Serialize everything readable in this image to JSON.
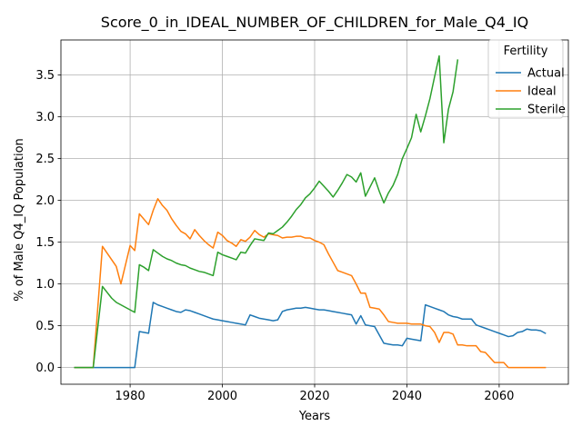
{
  "chart_data": {
    "type": "line",
    "title": "Score_0_in_IDEAL_NUMBER_OF_CHILDREN_for_Male_Q4_IQ",
    "xlabel": "Years",
    "ylabel": "% of Male Q4_IQ Population",
    "xlim": [
      1965,
      2075
    ],
    "ylim": [
      -0.2,
      3.92
    ],
    "xticks": [
      1980,
      2000,
      2020,
      2040,
      2060
    ],
    "yticks": [
      0.0,
      0.5,
      1.0,
      1.5,
      2.0,
      2.5,
      3.0,
      3.5
    ],
    "ytick_labels": [
      "0.0",
      "0.5",
      "1.0",
      "1.5",
      "2.0",
      "2.5",
      "3.0",
      "3.5"
    ],
    "grid": true,
    "legend": {
      "title": "Fertility",
      "position": "upper right"
    },
    "series": [
      {
        "name": "Actual",
        "color": "#1f77b4",
        "x": [
          1968,
          1972,
          1981,
          1982,
          1984,
          1985,
          1986,
          1987,
          1988,
          1989,
          1990,
          1991,
          1992,
          1993,
          1994,
          1995,
          1996,
          1997,
          1998,
          1999,
          2000,
          2001,
          2002,
          2003,
          2004,
          2005,
          2006,
          2007,
          2008,
          2009,
          2010,
          2011,
          2012,
          2013,
          2014,
          2015,
          2016,
          2017,
          2018,
          2019,
          2020,
          2021,
          2022,
          2023,
          2024,
          2025,
          2026,
          2027,
          2028,
          2029,
          2030,
          2031,
          2032,
          2033,
          2035,
          2036,
          2037,
          2038,
          2039,
          2040,
          2041,
          2042,
          2043,
          2044,
          2045,
          2046,
          2047,
          2048,
          2049,
          2050,
          2051,
          2052,
          2053,
          2054,
          2055,
          2056,
          2057,
          2058,
          2059,
          2060,
          2061,
          2062,
          2063,
          2064,
          2065,
          2066,
          2067,
          2068,
          2069,
          2070
        ],
        "values": [
          0.0,
          0.0,
          0.0,
          0.43,
          0.41,
          0.78,
          0.75,
          0.73,
          0.71,
          0.69,
          0.67,
          0.66,
          0.69,
          0.68,
          0.66,
          0.64,
          0.62,
          0.6,
          0.58,
          0.57,
          0.56,
          0.55,
          0.54,
          0.53,
          0.52,
          0.51,
          0.63,
          0.61,
          0.59,
          0.58,
          0.57,
          0.56,
          0.57,
          0.67,
          0.69,
          0.7,
          0.71,
          0.71,
          0.72,
          0.71,
          0.7,
          0.69,
          0.69,
          0.68,
          0.67,
          0.66,
          0.65,
          0.64,
          0.63,
          0.52,
          0.62,
          0.51,
          0.5,
          0.49,
          0.29,
          0.28,
          0.27,
          0.27,
          0.26,
          0.35,
          0.34,
          0.33,
          0.32,
          0.75,
          0.73,
          0.71,
          0.69,
          0.67,
          0.63,
          0.61,
          0.6,
          0.58,
          0.58,
          0.58,
          0.51,
          0.49,
          0.47,
          0.45,
          0.43,
          0.41,
          0.39,
          0.37,
          0.38,
          0.42,
          0.43,
          0.46,
          0.45,
          0.45,
          0.44,
          0.41
        ]
      },
      {
        "name": "Ideal",
        "color": "#ff7f0e",
        "x": [
          1968,
          1972,
          1974,
          1977,
          1978,
          1980,
          1981,
          1982,
          1984,
          1985,
          1986,
          1987,
          1988,
          1989,
          1990,
          1991,
          1992,
          1993,
          1994,
          1995,
          1996,
          1997,
          1998,
          1999,
          2000,
          2001,
          2002,
          2003,
          2004,
          2005,
          2006,
          2007,
          2008,
          2009,
          2010,
          2011,
          2012,
          2013,
          2014,
          2015,
          2016,
          2017,
          2018,
          2019,
          2020,
          2021,
          2022,
          2023,
          2024,
          2025,
          2026,
          2027,
          2028,
          2029,
          2030,
          2031,
          2032,
          2033,
          2034,
          2035,
          2036,
          2037,
          2038,
          2039,
          2040,
          2041,
          2042,
          2043,
          2044,
          2045,
          2046,
          2047,
          2048,
          2049,
          2050,
          2051,
          2052,
          2053,
          2054,
          2055,
          2056,
          2057,
          2058,
          2059,
          2060,
          2061,
          2062,
          2063,
          2064,
          2065,
          2066,
          2067,
          2068,
          2069,
          2070
        ],
        "values": [
          0.0,
          0.0,
          1.45,
          1.21,
          1.0,
          1.46,
          1.4,
          1.84,
          1.71,
          1.88,
          2.02,
          1.94,
          1.88,
          1.78,
          1.7,
          1.63,
          1.6,
          1.54,
          1.65,
          1.58,
          1.52,
          1.47,
          1.43,
          1.62,
          1.58,
          1.52,
          1.49,
          1.45,
          1.53,
          1.51,
          1.56,
          1.64,
          1.59,
          1.56,
          1.6,
          1.59,
          1.58,
          1.55,
          1.56,
          1.56,
          1.57,
          1.57,
          1.55,
          1.55,
          1.52,
          1.5,
          1.47,
          1.36,
          1.26,
          1.16,
          1.14,
          1.12,
          1.1,
          1.0,
          0.89,
          0.89,
          0.72,
          0.71,
          0.7,
          0.63,
          0.55,
          0.54,
          0.53,
          0.53,
          0.53,
          0.52,
          0.52,
          0.52,
          0.5,
          0.49,
          0.42,
          0.3,
          0.42,
          0.42,
          0.4,
          0.27,
          0.27,
          0.26,
          0.26,
          0.26,
          0.19,
          0.18,
          0.12,
          0.06,
          0.06,
          0.06,
          0.0,
          0.0,
          0.0,
          0.0,
          0.0,
          0.0,
          0.0,
          0.0,
          0.0
        ]
      },
      {
        "name": "Sterile",
        "color": "#2ca02c",
        "x": [
          1968,
          1972,
          1974,
          1975,
          1976,
          1977,
          1978,
          1979,
          1980,
          1981,
          1982,
          1983,
          1984,
          1985,
          1986,
          1987,
          1988,
          1989,
          1990,
          1991,
          1992,
          1993,
          1994,
          1995,
          1996,
          1997,
          1998,
          1999,
          2000,
          2001,
          2002,
          2003,
          2004,
          2005,
          2006,
          2007,
          2008,
          2009,
          2010,
          2011,
          2012,
          2013,
          2014,
          2015,
          2016,
          2017,
          2018,
          2019,
          2020,
          2021,
          2022,
          2023,
          2024,
          2025,
          2026,
          2027,
          2028,
          2029,
          2030,
          2031,
          2032,
          2033,
          2034,
          2035,
          2036,
          2037,
          2038,
          2039,
          2040,
          2041,
          2042,
          2043,
          2044,
          2045,
          2046,
          2047,
          2048,
          2049,
          2050,
          2051
        ],
        "values": [
          0.0,
          0.0,
          0.97,
          0.9,
          0.83,
          0.78,
          0.75,
          0.72,
          0.69,
          0.66,
          1.23,
          1.2,
          1.16,
          1.41,
          1.37,
          1.33,
          1.3,
          1.28,
          1.25,
          1.23,
          1.22,
          1.19,
          1.17,
          1.15,
          1.14,
          1.12,
          1.1,
          1.38,
          1.35,
          1.33,
          1.31,
          1.29,
          1.38,
          1.37,
          1.46,
          1.54,
          1.53,
          1.52,
          1.61,
          1.6,
          1.64,
          1.68,
          1.74,
          1.81,
          1.89,
          1.95,
          2.03,
          2.08,
          2.15,
          2.23,
          2.17,
          2.11,
          2.04,
          2.12,
          2.21,
          2.31,
          2.28,
          2.22,
          2.33,
          2.05,
          2.16,
          2.27,
          2.11,
          1.97,
          2.09,
          2.18,
          2.31,
          2.5,
          2.62,
          2.75,
          3.03,
          2.82,
          3.01,
          3.22,
          3.48,
          3.73,
          2.69,
          3.09,
          3.3,
          3.68
        ]
      }
    ]
  }
}
